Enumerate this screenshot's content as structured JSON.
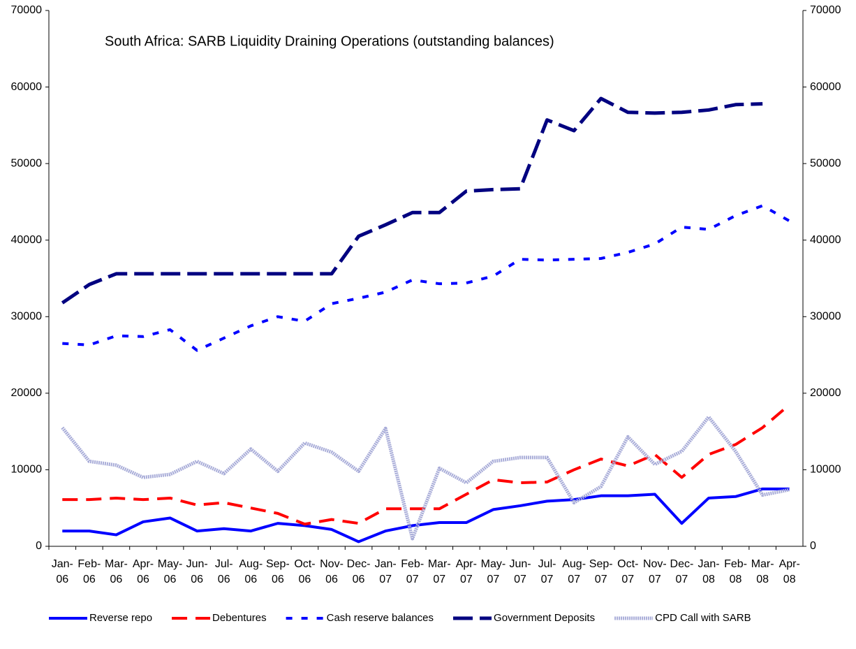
{
  "chart_data": {
    "type": "line",
    "title": "South Africa: SARB Liquidity Draining Operations (outstanding balances)",
    "categories": [
      "Jan-06",
      "Feb-06",
      "Mar-06",
      "Apr-06",
      "May-06",
      "Jun-06",
      "Jul-06",
      "Aug-06",
      "Sep-06",
      "Oct-06",
      "Nov-06",
      "Dec-06",
      "Jan-07",
      "Feb-07",
      "Mar-07",
      "Apr-07",
      "May-07",
      "Jun-07",
      "Jul-07",
      "Aug-07",
      "Sep-07",
      "Oct-07",
      "Nov-07",
      "Dec-07",
      "Jan-08",
      "Feb-08",
      "Mar-08",
      "Apr-08"
    ],
    "series": [
      {
        "name": "Reverse repo",
        "color": "#0000ff",
        "values": [
          2000,
          2000,
          1500,
          3200,
          3700,
          2000,
          2300,
          2000,
          3000,
          2700,
          2200,
          600,
          2000,
          2700,
          3100,
          3100,
          4800,
          5300,
          5900,
          6100,
          6600,
          6600,
          6800,
          3000,
          6300,
          6500,
          7500,
          7500
        ]
      },
      {
        "name": "Debentures",
        "color": "#ff0000",
        "values": [
          6100,
          6100,
          6300,
          6100,
          6300,
          5400,
          5700,
          5000,
          4300,
          2900,
          3500,
          3000,
          4900,
          4900,
          4900,
          6800,
          8700,
          8300,
          8400,
          10000,
          11400,
          10500,
          12000,
          9000,
          12000,
          13300,
          15500,
          18500
        ]
      },
      {
        "name": "Cash reserve balances",
        "color": "#0000ff",
        "values": [
          26500,
          26300,
          27500,
          27400,
          28300,
          25600,
          27200,
          28800,
          30000,
          29400,
          31700,
          32400,
          33200,
          34800,
          34300,
          34400,
          35300,
          37500,
          37400,
          37500,
          37600,
          38400,
          39500,
          41700,
          41400,
          43200,
          44500,
          42500
        ]
      },
      {
        "name": "Government Deposits",
        "color": "#000080",
        "values": [
          31800,
          34200,
          35600,
          35600,
          35600,
          35600,
          35600,
          35600,
          35600,
          35600,
          35600,
          40500,
          42000,
          43600,
          43600,
          46400,
          46600,
          46700,
          55700,
          54300,
          58500,
          56700,
          56600,
          56700,
          57000,
          57700,
          57800,
          null
        ]
      },
      {
        "name": "CPD Call with SARB",
        "color": "#a8acd8",
        "values": [
          15500,
          11100,
          10600,
          9000,
          9400,
          11100,
          9500,
          12700,
          9800,
          13500,
          12300,
          9800,
          15400,
          1000,
          10200,
          8300,
          11100,
          11600,
          11600,
          5700,
          7800,
          14300,
          10700,
          12400,
          16900,
          12400,
          6700,
          7400
        ]
      }
    ],
    "ylim": [
      0,
      70000
    ],
    "yticks": [
      0,
      10000,
      20000,
      30000,
      40000,
      50000,
      60000,
      70000
    ],
    "y2lim": [
      0,
      70000
    ],
    "y2ticks": [
      0,
      10000,
      20000,
      30000,
      40000,
      50000,
      60000,
      70000
    ],
    "legend": "bottom"
  }
}
